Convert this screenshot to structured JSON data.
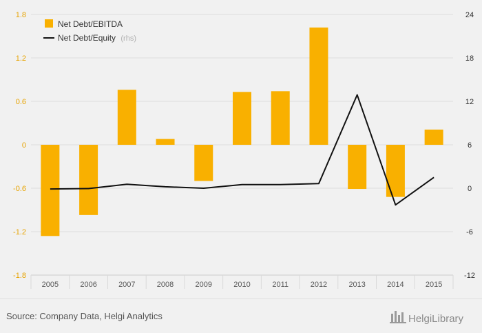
{
  "chart_data": {
    "type": "bar",
    "categories": [
      "2005",
      "2006",
      "2007",
      "2008",
      "2009",
      "2010",
      "2011",
      "2012",
      "2013",
      "2014",
      "2015"
    ],
    "series": [
      {
        "name": "Net Debt/EBITDA",
        "type": "bar",
        "axis": "left",
        "values": [
          -1.26,
          -0.97,
          0.76,
          0.08,
          -0.5,
          0.73,
          0.74,
          1.62,
          -0.61,
          -0.72,
          0.21
        ]
      },
      {
        "name": "Net Debt/Equity",
        "name_suffix": "(rhs)",
        "type": "line",
        "axis": "right",
        "values": [
          -0.1,
          -0.05,
          0.55,
          0.2,
          0.0,
          0.5,
          0.5,
          0.65,
          12.9,
          -2.3,
          1.5
        ]
      }
    ],
    "y_left": {
      "ylim": [
        -1.8,
        1.8
      ],
      "ticks": [
        "1.8",
        "1.2",
        "0.6",
        "0",
        "-0.6",
        "-1.2",
        "-1.8"
      ]
    },
    "y_right": {
      "ylim": [
        -12,
        24
      ],
      "ticks": [
        "24",
        "18",
        "12",
        "6",
        "0",
        "-6",
        "-12"
      ]
    },
    "grid": true,
    "legend_position": "top-left",
    "colors": {
      "bar": "#f9b000",
      "line": "#111111",
      "left_axis_text": "#e7a300",
      "grid": "#dddddd",
      "background": "#f1f1f1"
    }
  },
  "footer": {
    "source": "Source: Company Data, Helgi Analytics",
    "brand": "HelgiLibrary"
  }
}
